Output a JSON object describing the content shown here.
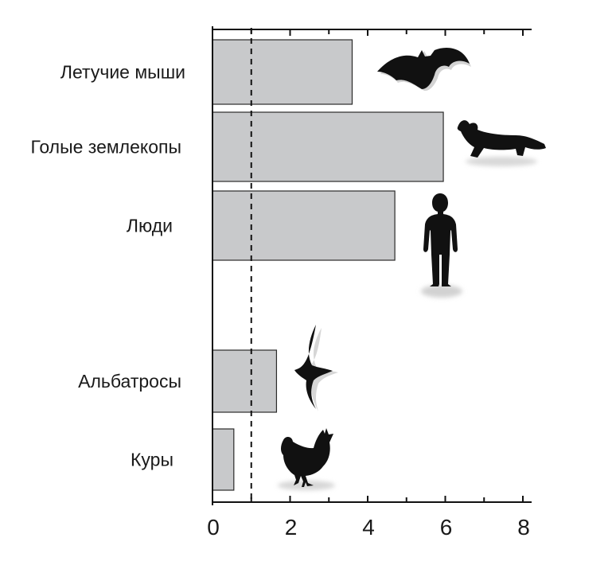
{
  "chart_data": {
    "type": "bar",
    "orientation": "horizontal",
    "title": "",
    "xlabel": "",
    "ylabel": "",
    "categories": [
      "Летучие мыши",
      "Голые землекопы",
      "Люди",
      "Альбатросы",
      "Куры"
    ],
    "values": [
      3.6,
      5.95,
      4.7,
      1.65,
      0.55
    ],
    "xlim": [
      0,
      8
    ],
    "x_ticks": [
      0,
      2,
      4,
      6,
      8
    ],
    "x_tick_labels": [
      "0",
      "2",
      "4",
      "6",
      "8"
    ],
    "reference_line": {
      "x": 1,
      "style": "dashed"
    },
    "grid": false,
    "legend": "none",
    "axis_position": "top-and-bottom",
    "bar_color": "#c8c9cb",
    "bar_edge_color": "#2b2b2b",
    "icons": [
      "bat-icon",
      "naked-mole-rat-icon",
      "human-icon",
      "albatross-icon",
      "chicken-icon"
    ]
  }
}
